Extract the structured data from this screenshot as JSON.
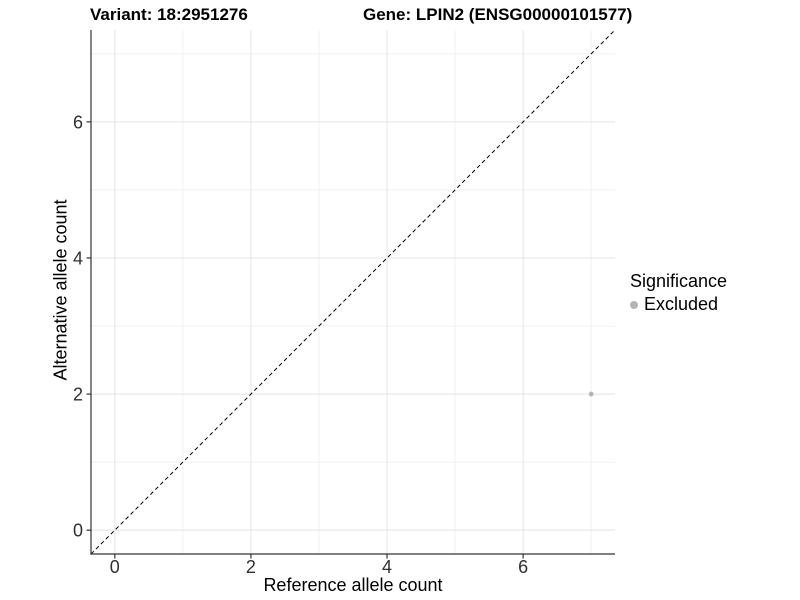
{
  "chart_data": {
    "type": "scatter",
    "title_left": "Variant: 18:2951276",
    "title_right": "Gene: LPIN2 (ENSG00000101577)",
    "xlabel": "Reference allele count",
    "ylabel": "Alternative allele count",
    "xlim": [
      -0.35,
      7.35
    ],
    "ylim": [
      -0.35,
      7.35
    ],
    "x_major_ticks": [
      0,
      2,
      4,
      6
    ],
    "y_major_ticks": [
      0,
      2,
      4,
      6
    ],
    "x_minor_gridlines": [
      1,
      3,
      5,
      7
    ],
    "y_minor_gridlines": [
      1,
      3,
      5,
      7
    ],
    "grid": "on",
    "identity_line": {
      "style": "dashed",
      "slope": 1,
      "intercept": 0,
      "color": "#000000"
    },
    "series": [
      {
        "name": "Excluded",
        "color": "#b5b5b5",
        "marker": "circle",
        "points": [
          {
            "x": 7,
            "y": 2
          }
        ]
      }
    ],
    "legend": {
      "position": "right",
      "title": "Significance",
      "items": [
        {
          "label": "Excluded",
          "color": "#b5b5b5",
          "marker": "circle"
        }
      ]
    },
    "colors": {
      "background": "#ffffff",
      "grid_major": "#e4e4e4",
      "grid_minor": "#f1f1f1",
      "axis_line": "#333333",
      "tick_mark": "#333333",
      "tick_label": "#303030"
    }
  }
}
